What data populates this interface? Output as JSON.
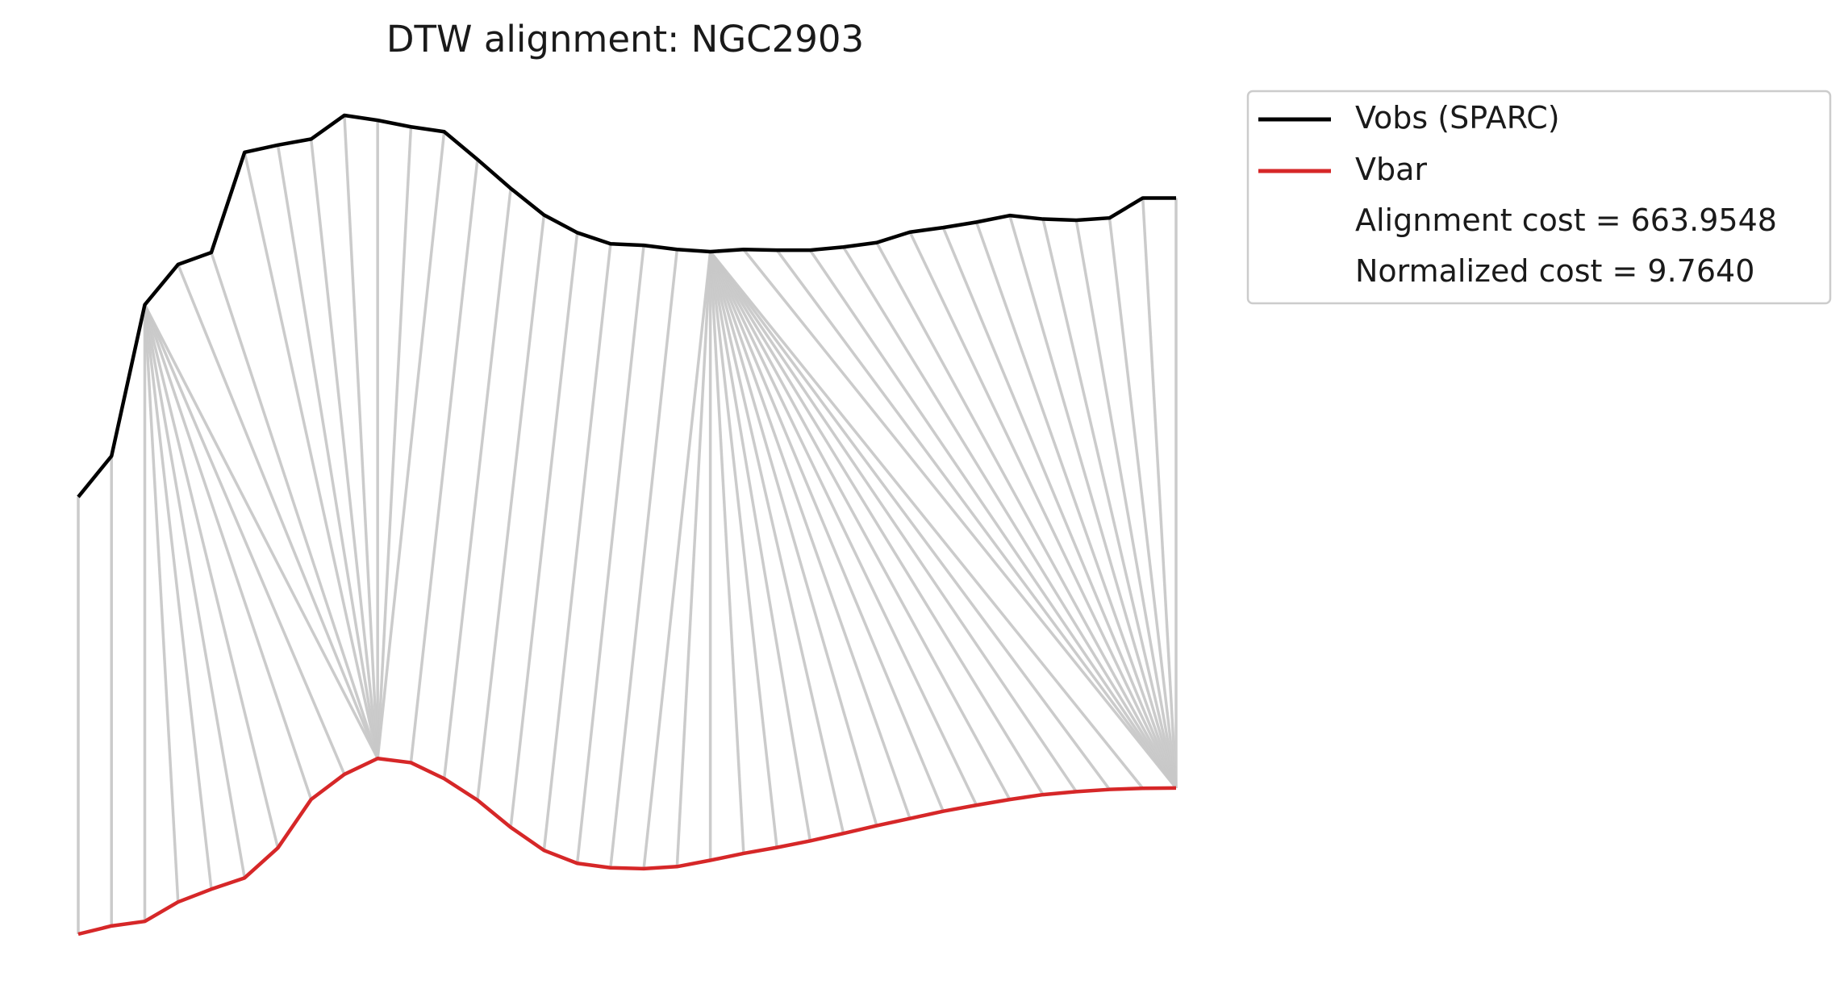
{
  "chart_data": {
    "type": "line",
    "title": "DTW alignment: NGC2903",
    "axes_visible": false,
    "grid": false,
    "legend_position": "upper-right-outside",
    "colors": {
      "vobs": "#000000",
      "vbar": "#d62728",
      "connector": "#c8c8c8",
      "legend_border": "#cccccc"
    },
    "series": [
      {
        "name": "Vobs (SPARC)",
        "color": "#000000",
        "values": [
          0.4267,
          0.4822,
          0.6876,
          0.7423,
          0.7586,
          0.8946,
          0.9045,
          0.9126,
          0.9448,
          0.9381,
          0.9292,
          0.9226,
          0.8849,
          0.8456,
          0.8095,
          0.7855,
          0.7704,
          0.7683,
          0.7627,
          0.7597,
          0.7627,
          0.7618,
          0.7618,
          0.766,
          0.772,
          0.7863,
          0.7924,
          0.7998,
          0.8088,
          0.804,
          0.8024,
          0.8055,
          0.8326,
          0.8326
        ]
      },
      {
        "name": "Vbar",
        "color": "#d62728",
        "values": [
          -0.1669,
          -0.1558,
          -0.1496,
          -0.1233,
          -0.1059,
          -0.0906,
          -0.0499,
          0.016,
          0.05,
          0.0716,
          0.0659,
          0.0442,
          0.015,
          -0.0219,
          -0.0532,
          -0.0708,
          -0.0768,
          -0.078,
          -0.0752,
          -0.0667,
          -0.0573,
          -0.0493,
          -0.0403,
          -0.0302,
          -0.0197,
          -0.0099,
          -0.0001,
          0.0082,
          0.0159,
          0.0225,
          0.0265,
          0.0295,
          0.0311,
          0.0315
        ]
      }
    ],
    "alignment_path": [
      [
        0,
        0
      ],
      [
        1,
        1
      ],
      [
        2,
        2
      ],
      [
        2,
        3
      ],
      [
        2,
        4
      ],
      [
        2,
        5
      ],
      [
        2,
        6
      ],
      [
        2,
        7
      ],
      [
        2,
        8
      ],
      [
        2,
        9
      ],
      [
        3,
        9
      ],
      [
        4,
        9
      ],
      [
        5,
        9
      ],
      [
        6,
        9
      ],
      [
        7,
        9
      ],
      [
        8,
        9
      ],
      [
        9,
        9
      ],
      [
        10,
        9
      ],
      [
        11,
        9
      ],
      [
        12,
        10
      ],
      [
        13,
        11
      ],
      [
        14,
        12
      ],
      [
        15,
        13
      ],
      [
        16,
        14
      ],
      [
        17,
        15
      ],
      [
        18,
        16
      ],
      [
        19,
        17
      ],
      [
        19,
        18
      ],
      [
        19,
        19
      ],
      [
        19,
        20
      ],
      [
        19,
        21
      ],
      [
        19,
        22
      ],
      [
        19,
        23
      ],
      [
        19,
        24
      ],
      [
        19,
        25
      ],
      [
        19,
        26
      ],
      [
        19,
        27
      ],
      [
        19,
        28
      ],
      [
        19,
        29
      ],
      [
        19,
        30
      ],
      [
        19,
        31
      ],
      [
        19,
        32
      ],
      [
        20,
        33
      ],
      [
        21,
        33
      ],
      [
        22,
        33
      ],
      [
        23,
        33
      ],
      [
        24,
        33
      ],
      [
        25,
        33
      ],
      [
        26,
        33
      ],
      [
        27,
        33
      ],
      [
        28,
        33
      ],
      [
        29,
        33
      ],
      [
        30,
        33
      ],
      [
        31,
        33
      ],
      [
        32,
        33
      ],
      [
        33,
        33
      ]
    ],
    "legend": {
      "entries": [
        "Vobs (SPARC)",
        "Vbar"
      ],
      "notes": [
        "Alignment cost = 663.9548",
        "Normalized cost = 9.7640"
      ]
    }
  }
}
